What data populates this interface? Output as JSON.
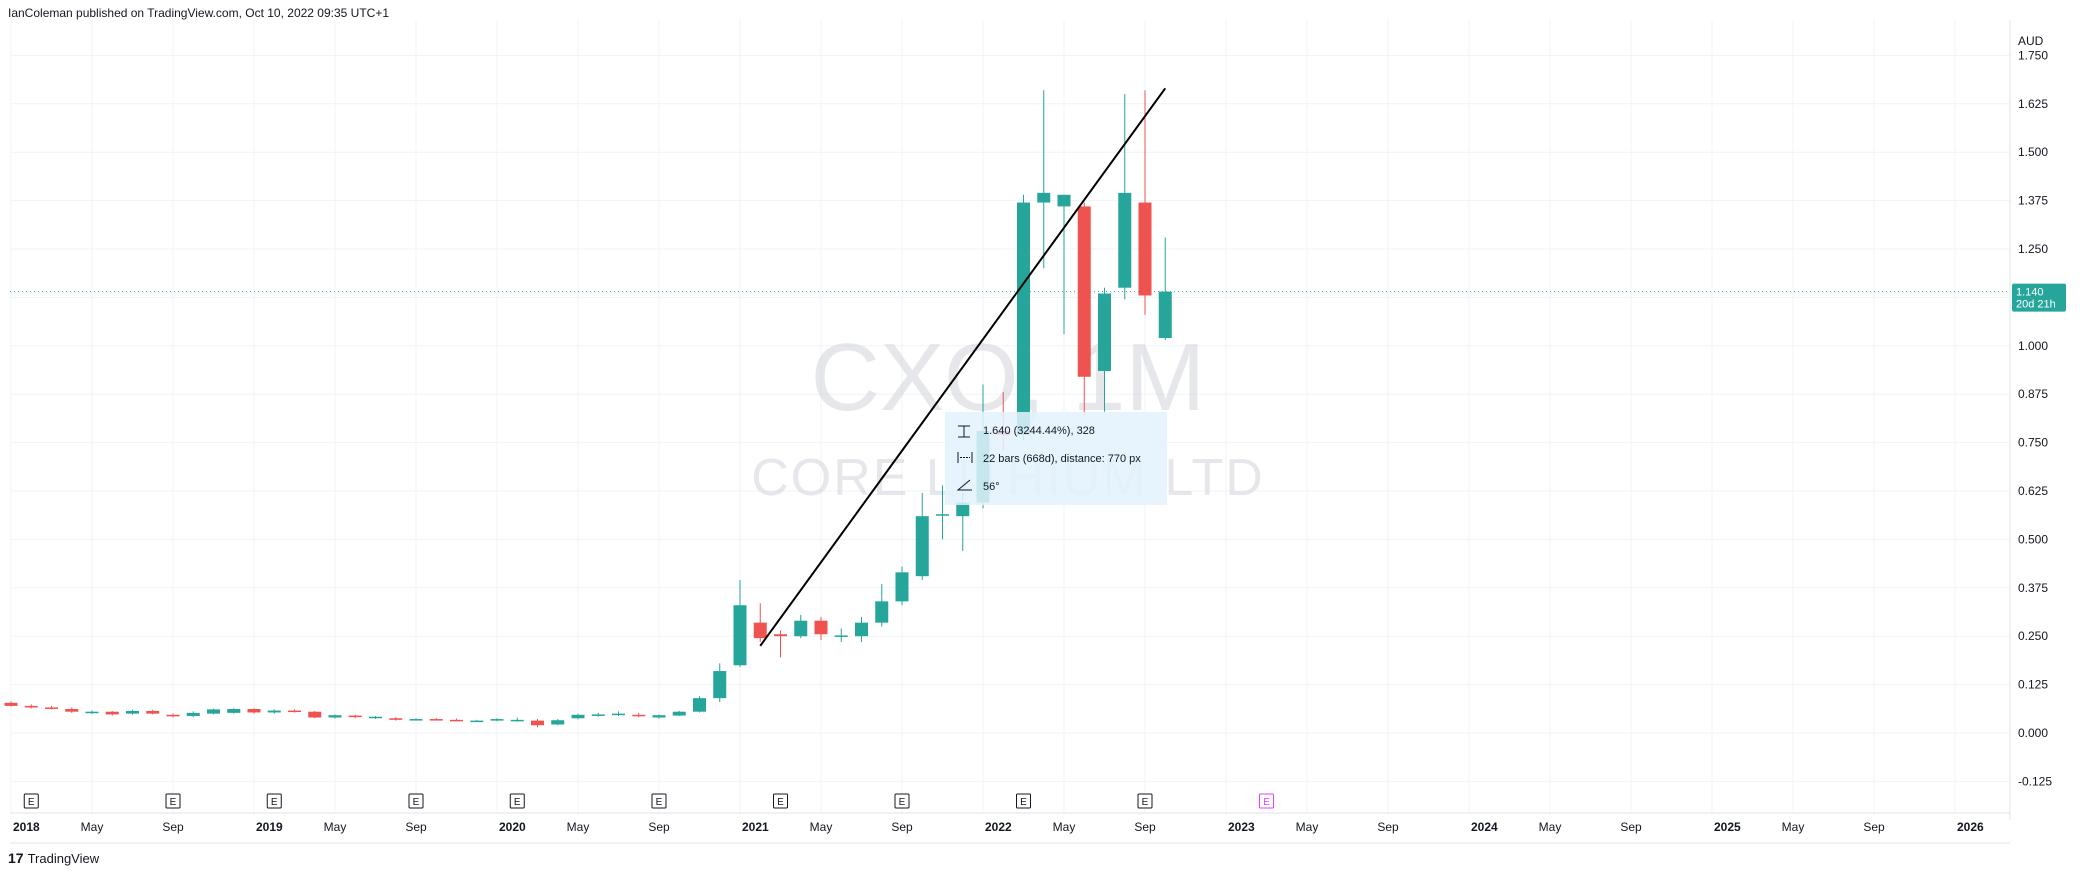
{
  "header": {
    "published": "IanColeman published on TradingView.com, Oct 10, 2022 09:35 UTC+1"
  },
  "footer": {
    "logo": "17",
    "brand": "TradingView"
  },
  "watermark": {
    "symbol": "CXO, 1M",
    "name": "CORE LITHIUM LTD"
  },
  "colors": {
    "up": "#26a69a",
    "down": "#ef5350",
    "grid": "#f0f3fa",
    "badge": "#26a69a",
    "measure_bg": "#e3f2fd",
    "earnings_future": "#e040fb"
  },
  "measure": {
    "price_line": "1.640 (3244.44%), 328",
    "bars_line": "22 bars (668d), distance: 770 px",
    "angle_line": "56°"
  },
  "last_price": {
    "price": "1.140",
    "countdown": "20d 21h"
  },
  "chart_data": {
    "type": "candlestick",
    "title": "CXO, 1M",
    "currency": "AUD",
    "ylim": [
      -0.175,
      1.8
    ],
    "y_ticks": [
      "-0.125",
      "0.000",
      "0.125",
      "0.250",
      "0.375",
      "0.500",
      "0.625",
      "0.750",
      "0.875",
      "1.000",
      "1.125",
      "1.250",
      "1.375",
      "1.500",
      "1.625",
      "1.750"
    ],
    "x_ticks": [
      {
        "label": "2018",
        "bold": true,
        "idx": 0
      },
      {
        "label": "May",
        "idx": 4
      },
      {
        "label": "Sep",
        "idx": 8
      },
      {
        "label": "2019",
        "bold": true,
        "idx": 12
      },
      {
        "label": "May",
        "idx": 16
      },
      {
        "label": "Sep",
        "idx": 20
      },
      {
        "label": "2020",
        "bold": true,
        "idx": 24
      },
      {
        "label": "May",
        "idx": 28
      },
      {
        "label": "Sep",
        "idx": 32
      },
      {
        "label": "2021",
        "bold": true,
        "idx": 36
      },
      {
        "label": "May",
        "idx": 40
      },
      {
        "label": "Sep",
        "idx": 44
      },
      {
        "label": "2022",
        "bold": true,
        "idx": 48
      },
      {
        "label": "May",
        "idx": 52
      },
      {
        "label": "Sep",
        "idx": 56
      },
      {
        "label": "2023",
        "bold": true,
        "idx": 60
      },
      {
        "label": "May",
        "idx": 64
      },
      {
        "label": "Sep",
        "idx": 68
      },
      {
        "label": "2024",
        "bold": true,
        "idx": 72
      },
      {
        "label": "May",
        "idx": 76
      },
      {
        "label": "Sep",
        "idx": 80
      },
      {
        "label": "2025",
        "bold": true,
        "idx": 84
      },
      {
        "label": "May",
        "idx": 88
      },
      {
        "label": "Sep",
        "idx": 92
      },
      {
        "label": "2026",
        "bold": true,
        "idx": 96
      }
    ],
    "earnings_idx": [
      1,
      8,
      13,
      20,
      25,
      32,
      38,
      44,
      50,
      56
    ],
    "earnings_future_idx": [
      62
    ],
    "earnings_label": "E",
    "candles": [
      {
        "m": "2017-12",
        "o": 0.085,
        "h": 0.095,
        "l": 0.078,
        "c": 0.08
      },
      {
        "m": "2018-01",
        "o": 0.078,
        "h": 0.082,
        "l": 0.068,
        "c": 0.07
      },
      {
        "m": "2018-02",
        "o": 0.07,
        "h": 0.074,
        "l": 0.063,
        "c": 0.066
      },
      {
        "m": "2018-03",
        "o": 0.066,
        "h": 0.07,
        "l": 0.061,
        "c": 0.063
      },
      {
        "m": "2018-04",
        "o": 0.062,
        "h": 0.066,
        "l": 0.052,
        "c": 0.055
      },
      {
        "m": "2018-05",
        "o": 0.053,
        "h": 0.058,
        "l": 0.049,
        "c": 0.055
      },
      {
        "m": "2018-06",
        "o": 0.055,
        "h": 0.057,
        "l": 0.045,
        "c": 0.048
      },
      {
        "m": "2018-07",
        "o": 0.05,
        "h": 0.06,
        "l": 0.047,
        "c": 0.057
      },
      {
        "m": "2018-08",
        "o": 0.057,
        "h": 0.06,
        "l": 0.048,
        "c": 0.05
      },
      {
        "m": "2018-09",
        "o": 0.047,
        "h": 0.05,
        "l": 0.04,
        "c": 0.043
      },
      {
        "m": "2018-10",
        "o": 0.044,
        "h": 0.056,
        "l": 0.041,
        "c": 0.052
      },
      {
        "m": "2018-11",
        "o": 0.05,
        "h": 0.063,
        "l": 0.048,
        "c": 0.061
      },
      {
        "m": "2018-12",
        "o": 0.052,
        "h": 0.064,
        "l": 0.05,
        "c": 0.062
      },
      {
        "m": "2019-01",
        "o": 0.062,
        "h": 0.064,
        "l": 0.05,
        "c": 0.053
      },
      {
        "m": "2019-02",
        "o": 0.053,
        "h": 0.061,
        "l": 0.05,
        "c": 0.058
      },
      {
        "m": "2019-03",
        "o": 0.058,
        "h": 0.061,
        "l": 0.053,
        "c": 0.056
      },
      {
        "m": "2019-04",
        "o": 0.055,
        "h": 0.057,
        "l": 0.038,
        "c": 0.04
      },
      {
        "m": "2019-05",
        "o": 0.04,
        "h": 0.048,
        "l": 0.037,
        "c": 0.046
      },
      {
        "m": "2019-06",
        "o": 0.045,
        "h": 0.047,
        "l": 0.038,
        "c": 0.041
      },
      {
        "m": "2019-07",
        "o": 0.041,
        "h": 0.044,
        "l": 0.036,
        "c": 0.042
      },
      {
        "m": "2019-08",
        "o": 0.038,
        "h": 0.041,
        "l": 0.032,
        "c": 0.034
      },
      {
        "m": "2019-09",
        "o": 0.034,
        "h": 0.038,
        "l": 0.032,
        "c": 0.036
      },
      {
        "m": "2019-10",
        "o": 0.036,
        "h": 0.039,
        "l": 0.033,
        "c": 0.035
      },
      {
        "m": "2019-11",
        "o": 0.034,
        "h": 0.037,
        "l": 0.031,
        "c": 0.033
      },
      {
        "m": "2019-12",
        "o": 0.031,
        "h": 0.034,
        "l": 0.029,
        "c": 0.032
      },
      {
        "m": "2020-01",
        "o": 0.032,
        "h": 0.038,
        "l": 0.03,
        "c": 0.036
      },
      {
        "m": "2020-02",
        "o": 0.031,
        "h": 0.04,
        "l": 0.029,
        "c": 0.034
      },
      {
        "m": "2020-03",
        "o": 0.032,
        "h": 0.036,
        "l": 0.015,
        "c": 0.02
      },
      {
        "m": "2020-04",
        "o": 0.022,
        "h": 0.036,
        "l": 0.02,
        "c": 0.033
      },
      {
        "m": "2020-05",
        "o": 0.038,
        "h": 0.05,
        "l": 0.035,
        "c": 0.047
      },
      {
        "m": "2020-06",
        "o": 0.046,
        "h": 0.052,
        "l": 0.042,
        "c": 0.048
      },
      {
        "m": "2020-07",
        "o": 0.048,
        "h": 0.056,
        "l": 0.044,
        "c": 0.05
      },
      {
        "m": "2020-08",
        "o": 0.047,
        "h": 0.052,
        "l": 0.041,
        "c": 0.044
      },
      {
        "m": "2020-09",
        "o": 0.04,
        "h": 0.048,
        "l": 0.037,
        "c": 0.046
      },
      {
        "m": "2020-10",
        "o": 0.045,
        "h": 0.057,
        "l": 0.044,
        "c": 0.055
      },
      {
        "m": "2020-11",
        "o": 0.055,
        "h": 0.095,
        "l": 0.053,
        "c": 0.09
      },
      {
        "m": "2020-12",
        "o": 0.09,
        "h": 0.18,
        "l": 0.08,
        "c": 0.16
      },
      {
        "m": "2021-01",
        "o": 0.175,
        "h": 0.395,
        "l": 0.17,
        "c": 0.33
      },
      {
        "m": "2021-02",
        "o": 0.285,
        "h": 0.335,
        "l": 0.235,
        "c": 0.245
      },
      {
        "m": "2021-03",
        "o": 0.255,
        "h": 0.265,
        "l": 0.195,
        "c": 0.25
      },
      {
        "m": "2021-04",
        "o": 0.25,
        "h": 0.305,
        "l": 0.245,
        "c": 0.29
      },
      {
        "m": "2021-05",
        "o": 0.29,
        "h": 0.3,
        "l": 0.24,
        "c": 0.255
      },
      {
        "m": "2021-06",
        "o": 0.25,
        "h": 0.27,
        "l": 0.235,
        "c": 0.252
      },
      {
        "m": "2021-07",
        "o": 0.25,
        "h": 0.3,
        "l": 0.235,
        "c": 0.285
      },
      {
        "m": "2021-08",
        "o": 0.285,
        "h": 0.385,
        "l": 0.275,
        "c": 0.34
      },
      {
        "m": "2021-09",
        "o": 0.34,
        "h": 0.43,
        "l": 0.33,
        "c": 0.415
      },
      {
        "m": "2021-10",
        "o": 0.405,
        "h": 0.62,
        "l": 0.395,
        "c": 0.56
      },
      {
        "m": "2021-11",
        "o": 0.565,
        "h": 0.64,
        "l": 0.5,
        "c": 0.565
      },
      {
        "m": "2021-12",
        "o": 0.56,
        "h": 0.62,
        "l": 0.47,
        "c": 0.595
      },
      {
        "m": "2022-01",
        "o": 0.595,
        "h": 0.9,
        "l": 0.58,
        "c": 0.78
      },
      {
        "m": "2022-02",
        "o": 0.78,
        "h": 0.88,
        "l": 0.73,
        "c": 0.77
      },
      {
        "m": "2022-03",
        "o": 0.77,
        "h": 1.39,
        "l": 0.755,
        "c": 1.37
      },
      {
        "m": "2022-04",
        "o": 1.37,
        "h": 1.66,
        "l": 1.2,
        "c": 1.395
      },
      {
        "m": "2022-05",
        "o": 1.36,
        "h": 1.39,
        "l": 1.03,
        "c": 1.39
      },
      {
        "m": "2022-06",
        "o": 1.36,
        "h": 1.37,
        "l": 0.82,
        "c": 0.92
      },
      {
        "m": "2022-07",
        "o": 0.935,
        "h": 1.15,
        "l": 0.83,
        "c": 1.135
      },
      {
        "m": "2022-08",
        "o": 1.15,
        "h": 1.65,
        "l": 1.12,
        "c": 1.395
      },
      {
        "m": "2022-09",
        "o": 1.37,
        "h": 1.66,
        "l": 1.08,
        "c": 1.13
      },
      {
        "m": "2022-10",
        "o": 1.02,
        "h": 1.28,
        "l": 1.015,
        "c": 1.14
      }
    ],
    "trend_line": {
      "from": {
        "idx": 37,
        "price": 0.225
      },
      "to": {
        "idx": 57,
        "price": 1.665
      }
    }
  }
}
